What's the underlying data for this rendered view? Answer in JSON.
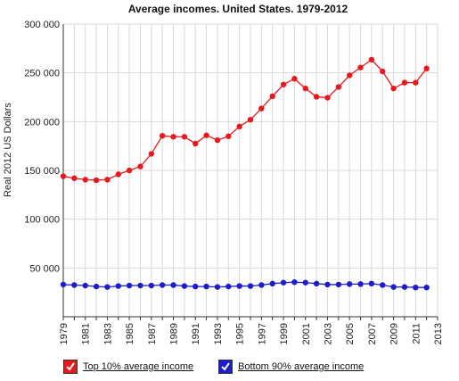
{
  "chart_data": {
    "type": "line",
    "title": "Average incomes. United States. 1979-2012",
    "ylabel": "Real 2012 US Dollars",
    "xlabel": "",
    "xlim": [
      1979,
      2013
    ],
    "ylim": [
      0,
      300000
    ],
    "grid": true,
    "legend_position": "bottom",
    "x_ticks": [
      "1979",
      "1981",
      "1983",
      "1985",
      "1987",
      "1989",
      "1991",
      "1993",
      "1995",
      "1997",
      "1999",
      "2001",
      "2003",
      "2005",
      "2007",
      "2009",
      "2011",
      "2013"
    ],
    "y_ticks": [
      "50 000",
      "100 000",
      "150 000",
      "200 000",
      "250 000",
      "300 000"
    ],
    "x": [
      1979,
      1980,
      1981,
      1982,
      1983,
      1984,
      1985,
      1986,
      1987,
      1988,
      1989,
      1990,
      1991,
      1992,
      1993,
      1994,
      1995,
      1996,
      1997,
      1998,
      1999,
      2000,
      2001,
      2002,
      2003,
      2004,
      2005,
      2006,
      2007,
      2008,
      2009,
      2010,
      2011,
      2012
    ],
    "series": [
      {
        "name": "Top 10% average income",
        "color": "#e8191e",
        "values": [
          144000,
          142000,
          140500,
          140000,
          140500,
          146000,
          150000,
          154000,
          167000,
          185500,
          184500,
          184500,
          177500,
          186000,
          181000,
          185000,
          195000,
          202000,
          213500,
          226000,
          238000,
          244000,
          234000,
          225500,
          224500,
          235500,
          247500,
          255500,
          263500,
          251500,
          234000,
          240000,
          240000,
          254500
        ]
      },
      {
        "name": "Bottom 90% average income",
        "color": "#1d1dcc",
        "values": [
          33000,
          32500,
          32000,
          31000,
          30500,
          31500,
          32000,
          32000,
          32000,
          32500,
          32500,
          31500,
          31000,
          31000,
          30500,
          31000,
          31500,
          31500,
          32500,
          34000,
          35000,
          35500,
          35000,
          34000,
          33000,
          33000,
          33500,
          33500,
          34000,
          32500,
          30500,
          30500,
          30000,
          30000
        ]
      }
    ]
  }
}
